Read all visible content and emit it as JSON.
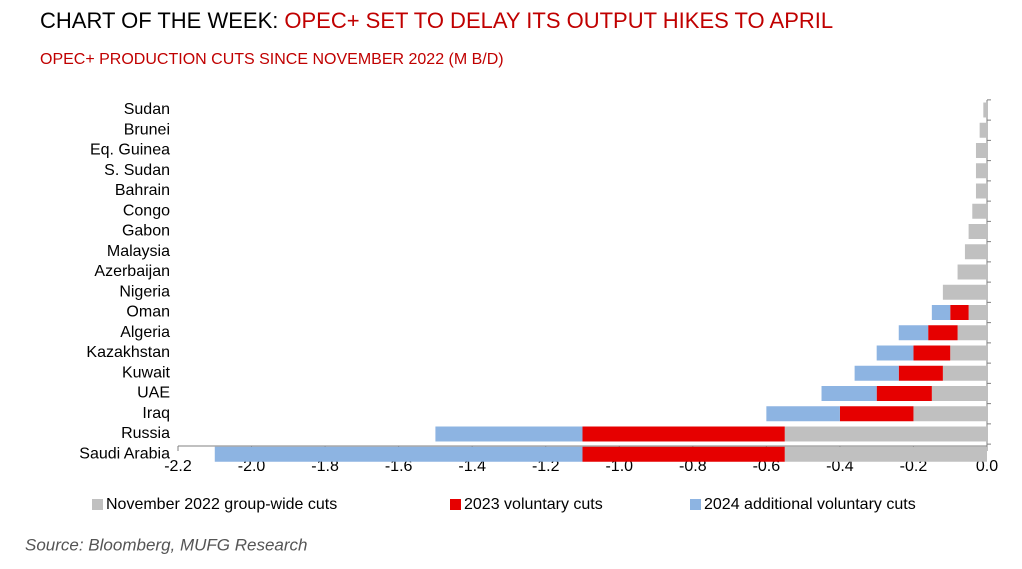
{
  "kicker": "CHART OF THE WEEK:",
  "chart_data": {
    "type": "stacked-bar-horizontal",
    "title": "OPEC+ SET TO DELAY ITS OUTPUT HIKES TO APRIL",
    "subtitle": "OPEC+ PRODUCTION CUTS SINCE NOVEMBER 2022 (M B/D)",
    "categories": [
      "Sudan",
      "Brunei",
      "Eq. Guinea",
      "S. Sudan",
      "Bahrain",
      "Congo",
      "Gabon",
      "Malaysia",
      "Azerbaijan",
      "Nigeria",
      "Oman",
      "Algeria",
      "Kazakhstan",
      "Kuwait",
      "UAE",
      "Iraq",
      "Russia",
      "Saudi Arabia"
    ],
    "series": [
      {
        "name": "November 2022 group-wide cuts",
        "color": "#c0c0c0",
        "values": [
          -0.01,
          -0.02,
          -0.03,
          -0.03,
          -0.03,
          -0.04,
          -0.05,
          -0.06,
          -0.08,
          -0.12,
          -0.05,
          -0.08,
          -0.1,
          -0.12,
          -0.15,
          -0.2,
          -0.55,
          -0.55
        ]
      },
      {
        "name": "2023 voluntary cuts",
        "color": "#e60000",
        "values": [
          0,
          0,
          0,
          0,
          0,
          0,
          0,
          0,
          0,
          0,
          -0.05,
          -0.08,
          -0.1,
          -0.12,
          -0.15,
          -0.2,
          -0.55,
          -0.55
        ]
      },
      {
        "name": "2024 additional voluntary cuts",
        "color": "#8db4e2",
        "values": [
          0,
          0,
          0,
          0,
          0,
          0,
          0,
          0,
          0,
          0,
          -0.05,
          -0.08,
          -0.1,
          -0.12,
          -0.15,
          -0.2,
          -0.4,
          -1.0
        ]
      }
    ],
    "xlim": [
      -2.2,
      0
    ],
    "xticks": [
      -2.2,
      {
        "value": -2,
        "label": "-2.0"
      },
      -1.8,
      -1.6,
      -1.4,
      -1.2,
      {
        "value": -1,
        "label": "-1.0"
      },
      -0.8,
      -0.6,
      -0.4,
      -0.2,
      {
        "value": 0,
        "label": "0.0"
      }
    ],
    "legend": "bottom"
  },
  "source": "Source: Bloomberg, MUFG Research"
}
